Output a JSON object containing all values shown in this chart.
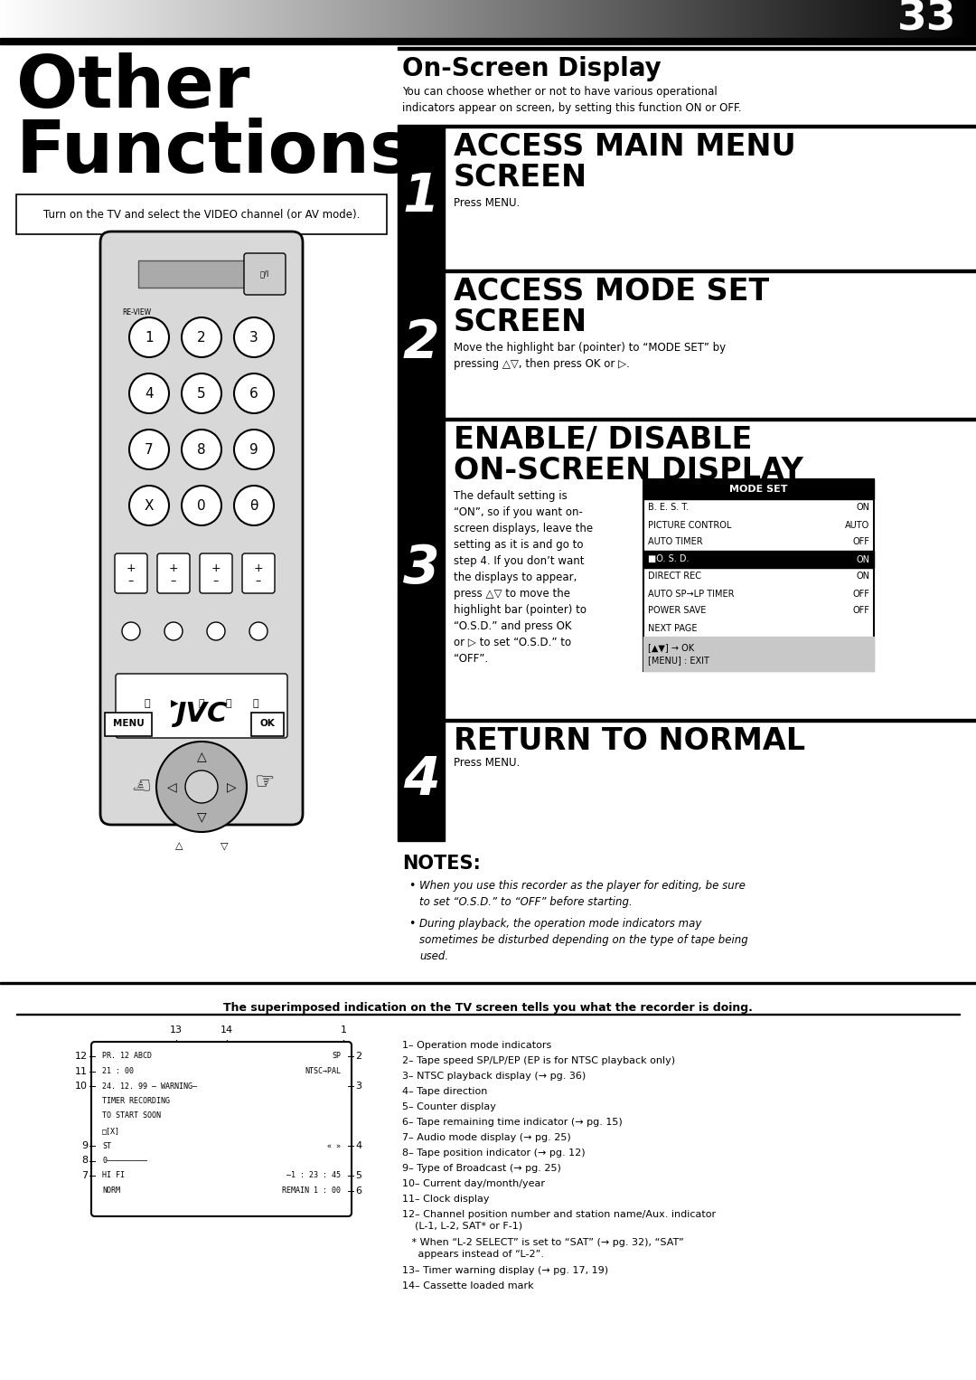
{
  "page_number": "33",
  "section_title": "Other\nFunctions",
  "onscreen_title": "On-Screen Display",
  "onscreen_subtitle": "You can choose whether or not to have various operational\nindicators appear on screen, by setting this function ON or OFF.",
  "prereq_text": "Turn on the TV and select the VIDEO channel (or AV mode).",
  "steps": [
    {
      "num": "1",
      "heading_line1": "ACCESS MAIN MENU",
      "heading_line2": "SCREEN",
      "body": "Press MENU."
    },
    {
      "num": "2",
      "heading_line1": "ACCESS MODE SET",
      "heading_line2": "SCREEN",
      "body": "Move the highlight bar (pointer) to “MODE SET” by\npressing △▽, then press OK or ▷."
    },
    {
      "num": "3",
      "heading_line1": "ENABLE/ DISABLE",
      "heading_line2": "ON-SCREEN DISPLAY",
      "body": "The default setting is\n“ON”, so if you want on-\nscreen displays, leave the\nsetting as it is and go to\nstep 4. If you don’t want\nthe displays to appear,\npress △▽ to move the\nhighlight bar (pointer) to\n“O.S.D.” and press OK\nor ▷ to set “O.S.D.” to\n“OFF”."
    },
    {
      "num": "4",
      "heading_line1": "RETURN TO NORMAL",
      "heading_line2": "",
      "body": "Press MENU."
    }
  ],
  "mode_set_rows": [
    {
      "label": "B. E. S. T.",
      "value": "ON",
      "highlight": false
    },
    {
      "label": "PICTURE CONTROL",
      "value": "AUTO",
      "highlight": false
    },
    {
      "label": "AUTO TIMER",
      "value": "OFF",
      "highlight": false
    },
    {
      "label": "■O. S. D.",
      "value": "ON",
      "highlight": true
    },
    {
      "label": "DIRECT REC",
      "value": "ON",
      "highlight": false
    },
    {
      "label": "AUTO SP→LP TIMER",
      "value": "OFF",
      "highlight": false
    },
    {
      "label": "POWER SAVE",
      "value": "OFF",
      "highlight": false
    },
    {
      "label": "NEXT PAGE",
      "value": "",
      "highlight": false
    }
  ],
  "mode_set_footer1": "[▲▼] → OK",
  "mode_set_footer2": "[MENU] : EXIT",
  "notes_title": "NOTES:",
  "notes": [
    "When you use this recorder as the player for editing, be sure\nto set “O.S.D.” to “OFF” before starting.",
    "During playback, the operation mode indicators may\nsometimes be disturbed depending on the type of tape being\nused."
  ],
  "bottom_title": "The superimposed indication on the TV screen tells you what the recorder is doing.",
  "screen_lines_left": [
    "PR. 12 ABCD",
    "21 : 00",
    "24. 12. 99 – WARNING–",
    "TIMER RECORDING",
    "TO START SOON",
    "□[X]",
    "ST",
    "0――――――――――",
    "HI FI",
    "NORM"
  ],
  "screen_lines_right": [
    "SP",
    "NTSC→PAL",
    "",
    "",
    "",
    "",
    "« »",
    "",
    "–1 : 23 : 45",
    "REMAIN 1 : 00"
  ],
  "right_list": [
    "1– Operation mode indicators",
    "2– Tape speed SP/LP/EP (EP is for NTSC playback only)",
    "3– NTSC playback display (→ pg. 36)",
    "4– Tape direction",
    "5– Counter display",
    "6– Tape remaining time indicator (→ pg. 15)",
    "7– Audio mode display (→ pg. 25)",
    "8– Tape position indicator (→ pg. 12)",
    "9– Type of Broadcast (→ pg. 25)",
    "10– Current day/month/year",
    "11– Clock display",
    "12– Channel position number and station name/Aux. indicator\n    (L-1, L-2, SAT* or F-1)",
    "   * When “L-2 SELECT” is set to “SAT” (→ pg. 32), “SAT”\n     appears instead of “L-2”.",
    "13– Timer warning display (→ pg. 17, 19)",
    "14– Cassette loaded mark"
  ]
}
